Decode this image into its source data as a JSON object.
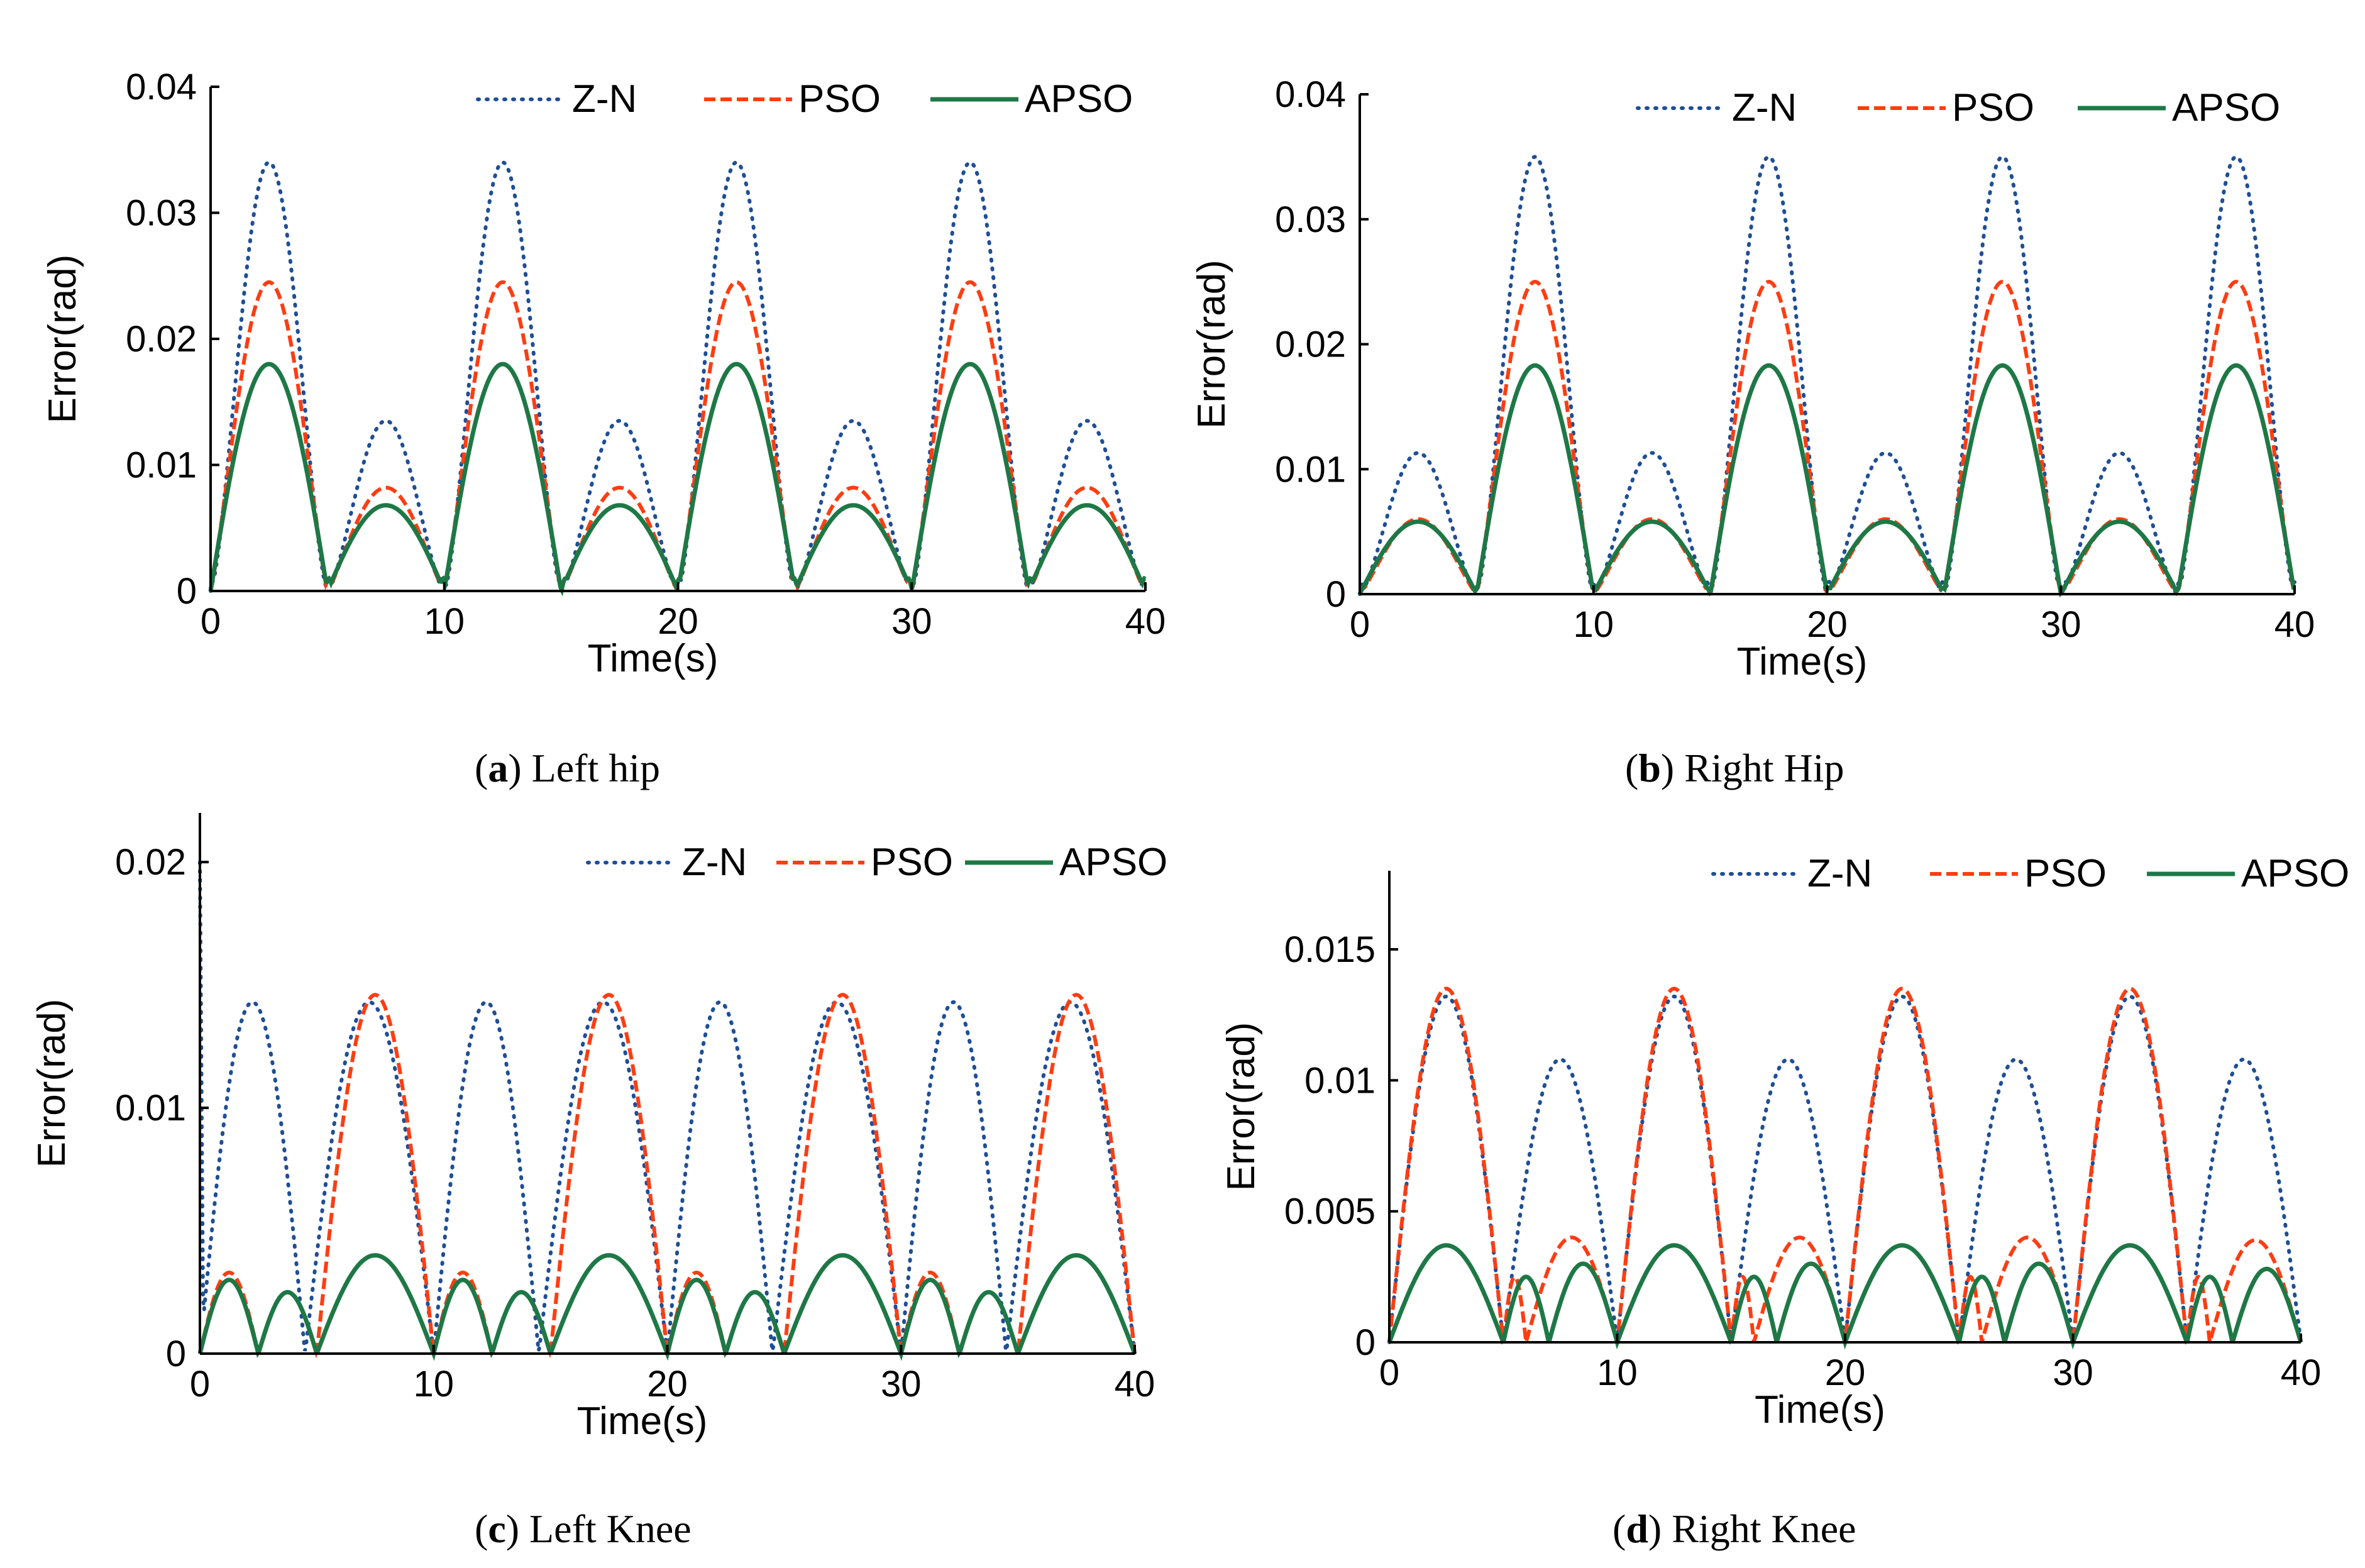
{
  "colors": {
    "zn": "#1f4e96",
    "pso": "#ff3d12",
    "apso": "#1e7846",
    "axis": "#000000"
  },
  "chart_data": [
    {
      "type": "line",
      "title": "Left hip",
      "caption": {
        "letter": "a",
        "text": "Left hip"
      },
      "xlabel": "Time(s)",
      "ylabel": "Error(rad)",
      "xlim": [
        0,
        40
      ],
      "ylim": [
        0,
        0.04
      ],
      "xticks": [
        0,
        10,
        20,
        30,
        40
      ],
      "xtick_labels": [
        "0",
        "10",
        "20",
        "30",
        "40"
      ],
      "yticks": [
        0,
        0.01,
        0.02,
        0.03,
        0.04
      ],
      "ytick_labels": [
        "0",
        "0.01",
        "0.02",
        "0.03",
        "0.04"
      ],
      "legend": [
        "Z-N",
        "PSO",
        "APSO"
      ],
      "legend_position": "top-right",
      "period": 10,
      "zero_times": [
        0,
        5,
        10,
        15,
        20,
        25,
        30,
        35,
        40
      ],
      "series": [
        {
          "name": "Z-N",
          "style": "dotted",
          "peaks_even": 0.034,
          "peaks_odd": 0.0135,
          "shape": 1.5,
          "floor": 0.001
        },
        {
          "name": "PSO",
          "style": "dashed",
          "peaks_even": 0.0245,
          "peaks_odd": 0.0082,
          "shape": 1.2,
          "floor": 0.001
        },
        {
          "name": "APSO",
          "style": "solid",
          "peaks_even": 0.018,
          "peaks_odd": 0.0068,
          "shape": 1.0,
          "floor": 0.001
        }
      ]
    },
    {
      "type": "line",
      "title": "Right Hip",
      "caption": {
        "letter": "b",
        "text": "Right Hip"
      },
      "xlabel": "Time(s)",
      "ylabel": "Error(rad)",
      "xlim": [
        0,
        40
      ],
      "ylim": [
        0,
        0.04
      ],
      "xticks": [
        0,
        10,
        20,
        30,
        40
      ],
      "xtick_labels": [
        "0",
        "10",
        "20",
        "30",
        "40"
      ],
      "yticks": [
        0,
        0.01,
        0.02,
        0.03,
        0.04
      ],
      "ytick_labels": [
        "0",
        "0.01",
        "0.02",
        "0.03",
        "0.04"
      ],
      "legend": [
        "Z-N",
        "PSO",
        "APSO"
      ],
      "legend_position": "top-right",
      "period": 10,
      "zero_times": [
        0,
        5,
        10,
        15,
        20,
        25,
        30,
        35,
        40
      ],
      "series": [
        {
          "name": "Z-N",
          "style": "dotted",
          "peaks_even": 0.0113,
          "peaks_odd": 0.035,
          "shape": 1.5,
          "floor": 0.001
        },
        {
          "name": "PSO",
          "style": "dashed",
          "peaks_even": 0.006,
          "peaks_odd": 0.025,
          "shape": 1.2,
          "floor": 0.0005
        },
        {
          "name": "APSO",
          "style": "solid",
          "peaks_even": 0.0058,
          "peaks_odd": 0.0183,
          "shape": 1.0,
          "floor": 0.0005
        }
      ]
    },
    {
      "type": "line",
      "title": "Left Knee",
      "caption": {
        "letter": "c",
        "text": "Left Knee"
      },
      "xlabel": "Time(s)",
      "ylabel": "Error(rad)",
      "xlim": [
        0,
        40
      ],
      "ylim": [
        0,
        0.022
      ],
      "xticks": [
        0,
        10,
        20,
        30,
        40
      ],
      "xtick_labels": [
        "0",
        "10",
        "20",
        "30",
        "40"
      ],
      "yticks": [
        0,
        0.01,
        0.02
      ],
      "ytick_labels": [
        "0",
        "0.01",
        "0.02"
      ],
      "legend": [
        "Z-N",
        "PSO",
        "APSO"
      ],
      "legend_position": "top-right",
      "period": 10,
      "series": [
        {
          "name": "Z-N",
          "style": "dotted",
          "peak": 0.0143,
          "zero_times": [
            0,
            4.5,
            10,
            14.5,
            20,
            24.5,
            30,
            34.5,
            40
          ],
          "initial_spike": 0.02
        },
        {
          "name": "PSO",
          "style": "dashed",
          "lobes": [
            [
              0,
              2.5,
              0.0033
            ],
            [
              2.5,
              5,
              0.0025
            ],
            [
              5,
              10,
              0.0146
            ],
            [
              10,
              12.5,
              0.0033
            ],
            [
              12.5,
              15,
              0.0025
            ],
            [
              15,
              20,
              0.0146
            ],
            [
              20,
              22.5,
              0.0033
            ],
            [
              22.5,
              25,
              0.0025
            ],
            [
              25,
              30,
              0.0146
            ],
            [
              30,
              32.5,
              0.0033
            ],
            [
              32.5,
              35,
              0.0025
            ],
            [
              35,
              40,
              0.0146
            ]
          ]
        },
        {
          "name": "APSO",
          "style": "solid",
          "lobes": [
            [
              0,
              2.5,
              0.003
            ],
            [
              2.5,
              5,
              0.0025
            ],
            [
              5,
              10,
              0.004
            ],
            [
              10,
              12.5,
              0.003
            ],
            [
              12.5,
              15,
              0.0025
            ],
            [
              15,
              20,
              0.004
            ],
            [
              20,
              22.5,
              0.003
            ],
            [
              22.5,
              25,
              0.0025
            ],
            [
              25,
              30,
              0.004
            ],
            [
              30,
              32.5,
              0.003
            ],
            [
              32.5,
              35,
              0.0025
            ],
            [
              35,
              40,
              0.004
            ]
          ]
        }
      ]
    },
    {
      "type": "line",
      "title": "Right Knee",
      "caption": {
        "letter": "d",
        "text": "Right Knee"
      },
      "xlabel": "Time(s)",
      "ylabel": "Error(rad)",
      "xlim": [
        0,
        40
      ],
      "ylim": [
        0,
        0.018
      ],
      "xticks": [
        0,
        10,
        20,
        30,
        40
      ],
      "xtick_labels": [
        "0",
        "10",
        "20",
        "30",
        "40"
      ],
      "yticks": [
        0,
        0.005,
        0.01,
        0.015
      ],
      "ytick_labels": [
        "0",
        "0.005",
        "0.01",
        "0.015"
      ],
      "legend": [
        "Z-N",
        "PSO",
        "APSO"
      ],
      "legend_position": "top-right",
      "period": 10,
      "series": [
        {
          "name": "Z-N",
          "style": "dotted",
          "lobes": [
            [
              0,
              5,
              0.0132
            ],
            [
              5,
              10,
              0.0108
            ],
            [
              10,
              15,
              0.0132
            ],
            [
              15,
              20,
              0.0108
            ],
            [
              20,
              25,
              0.0132
            ],
            [
              25,
              30,
              0.0108
            ],
            [
              30,
              35,
              0.0132
            ],
            [
              35,
              40,
              0.0108
            ]
          ]
        },
        {
          "name": "PSO",
          "style": "dashed",
          "lobes": [
            [
              0,
              5,
              0.0135
            ],
            [
              5,
              6,
              0.0025
            ],
            [
              6,
              10,
              0.004
            ],
            [
              10,
              15,
              0.0135
            ],
            [
              15,
              16,
              0.0025
            ],
            [
              16,
              20,
              0.004
            ],
            [
              20,
              25,
              0.0135
            ],
            [
              25,
              26,
              0.0025
            ],
            [
              26,
              30,
              0.004
            ],
            [
              30,
              35,
              0.0135
            ],
            [
              35,
              36,
              0.0025
            ],
            [
              36,
              40,
              0.0039
            ]
          ]
        },
        {
          "name": "APSO",
          "style": "solid",
          "lobes": [
            [
              0,
              5,
              0.0037
            ],
            [
              5,
              7,
              0.0025
            ],
            [
              7,
              10,
              0.003
            ],
            [
              10,
              15,
              0.0037
            ],
            [
              15,
              17,
              0.0025
            ],
            [
              17,
              20,
              0.003
            ],
            [
              20,
              25,
              0.0037
            ],
            [
              25,
              27,
              0.0025
            ],
            [
              27,
              30,
              0.003
            ],
            [
              30,
              35,
              0.0037
            ],
            [
              35,
              37,
              0.0025
            ],
            [
              37,
              40,
              0.0028
            ]
          ]
        }
      ]
    }
  ]
}
